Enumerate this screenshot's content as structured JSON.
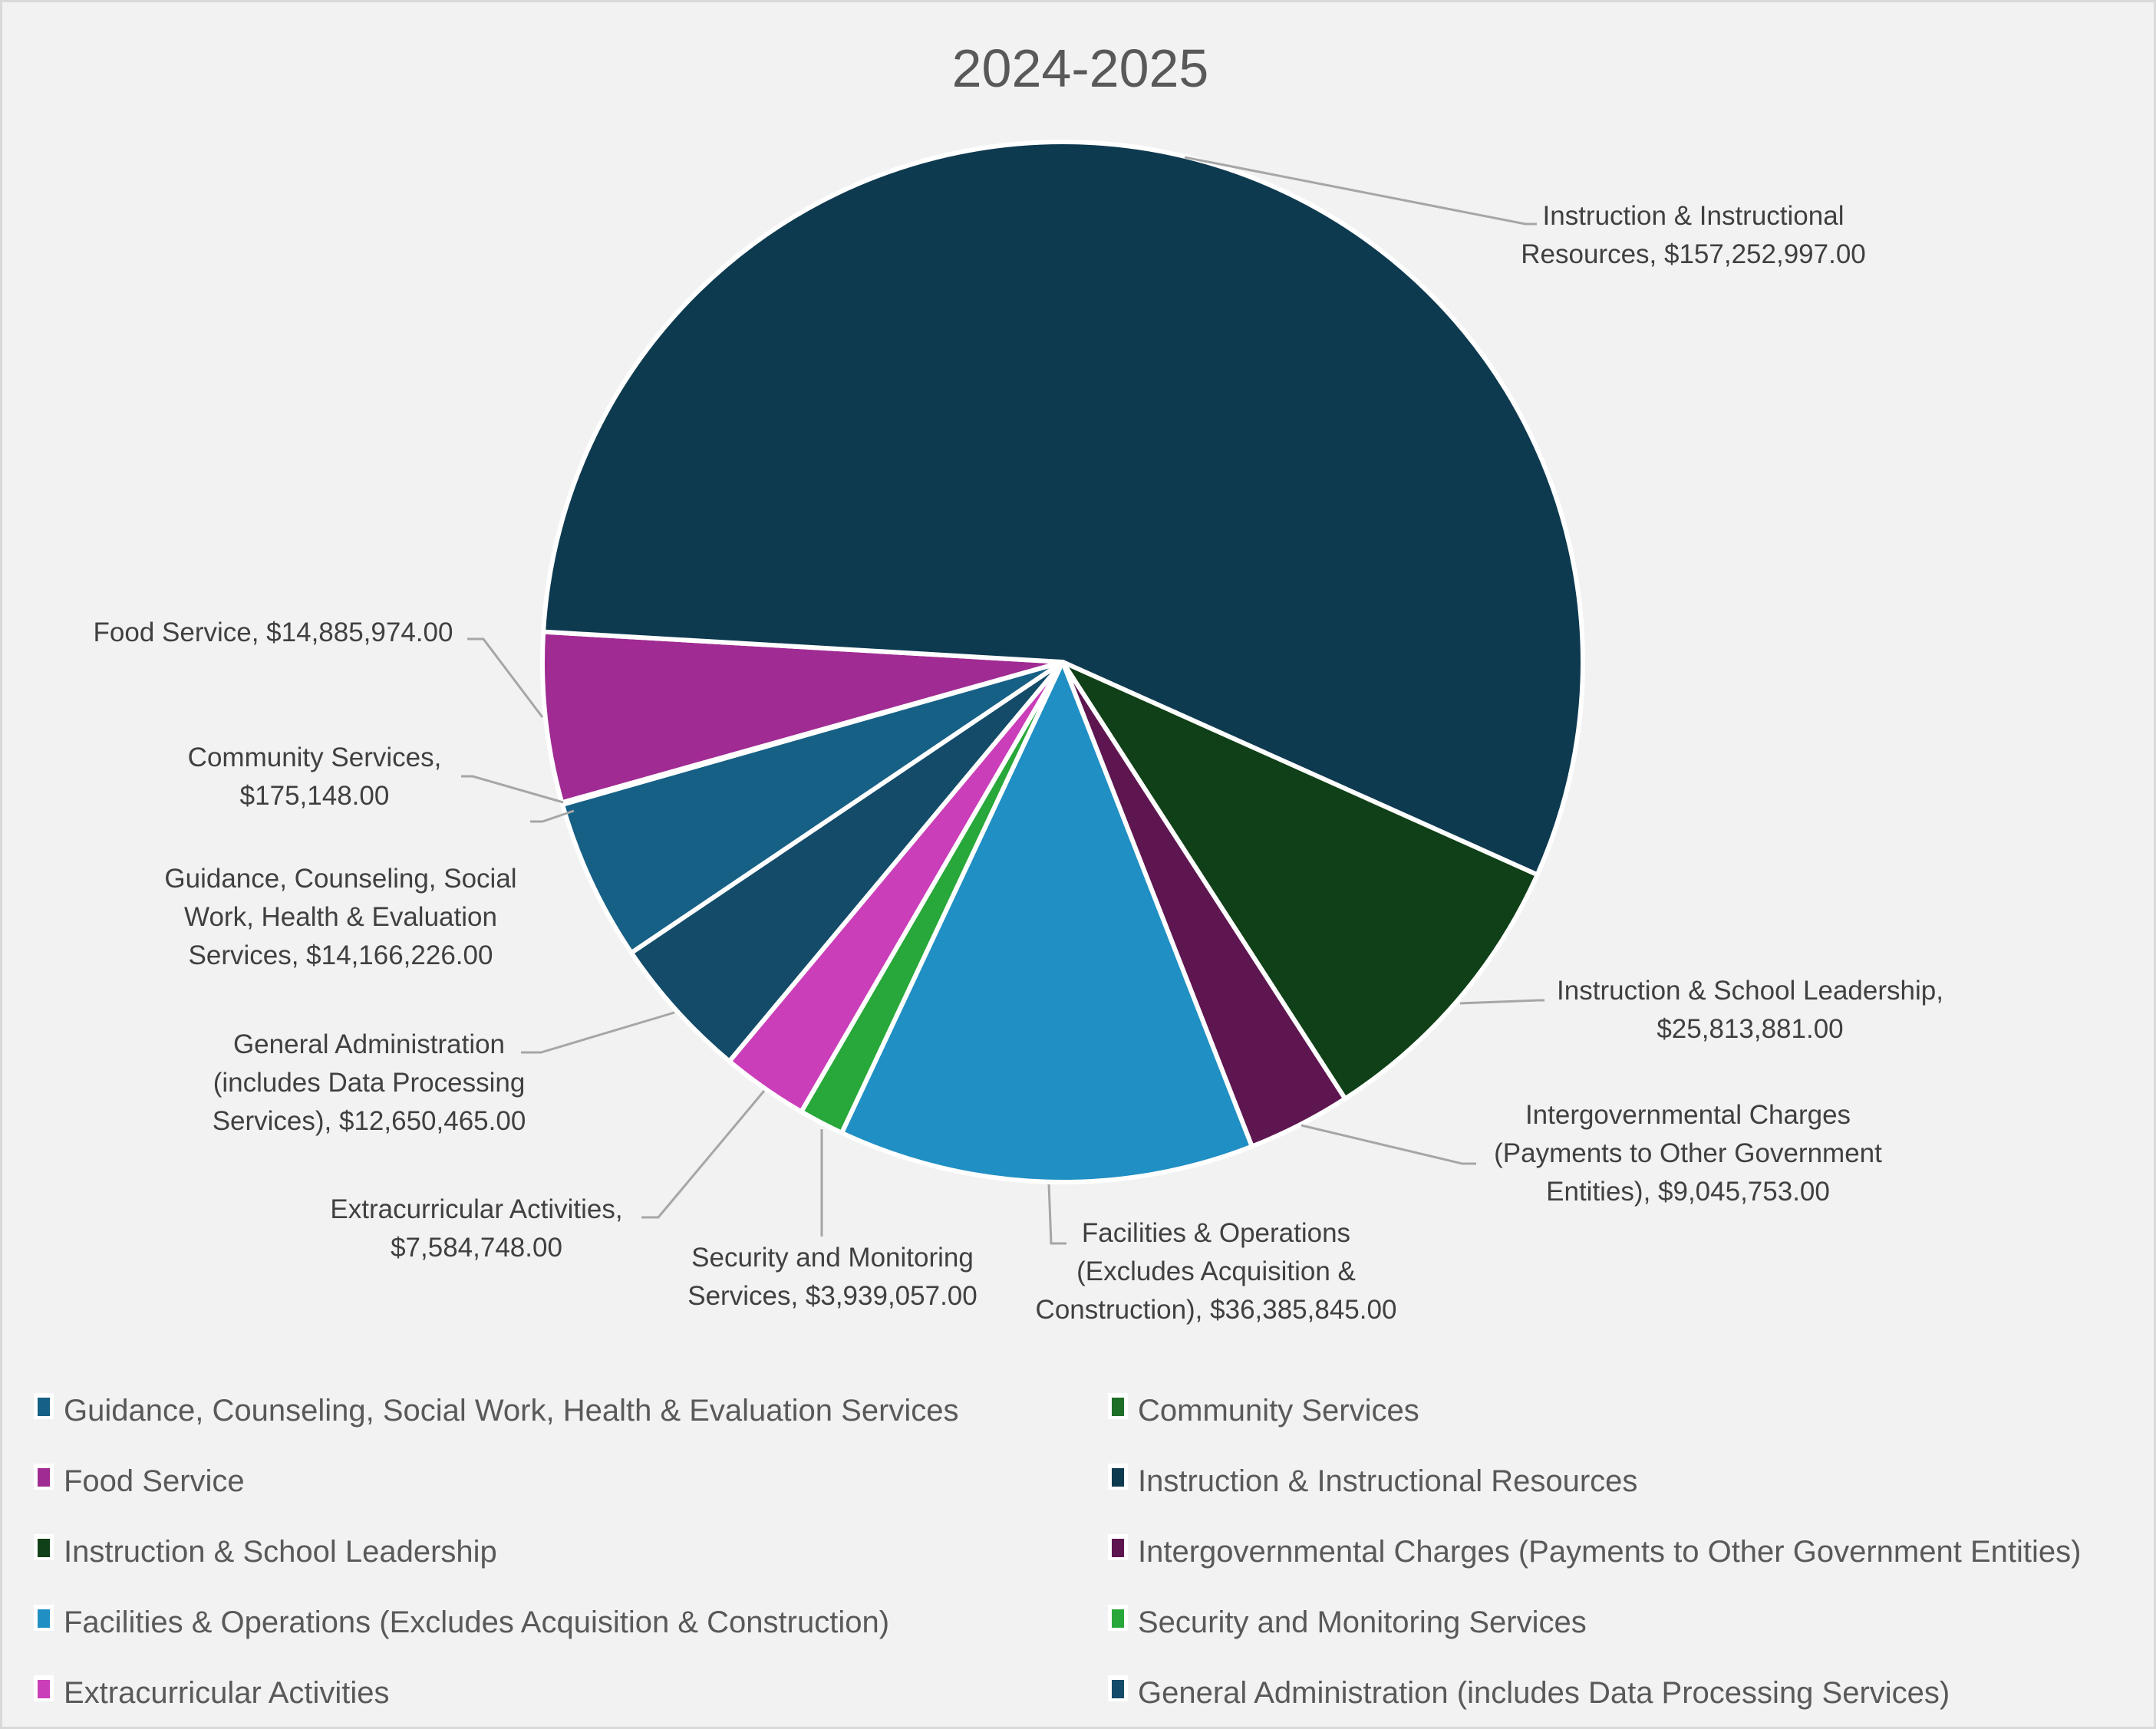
{
  "chart_data": {
    "type": "pie",
    "title": "2024-2025",
    "legend_position": "bottom",
    "slices": [
      {
        "name": "Guidance, Counseling, Social Work,  Health & Evaluation Services",
        "value": 14166226.0,
        "color": "#176085",
        "label_lines": [
          "Guidance, Counseling, Social",
          "Work,  Health & Evaluation",
          "Services, $14,166,226.00"
        ]
      },
      {
        "name": "Community Services",
        "value": 175148.0,
        "color": "#1E6E27",
        "label_lines": [
          "Community Services,",
          "$175,148.00"
        ]
      },
      {
        "name": "Food Service",
        "value": 14885974.0,
        "color": "#A02B93",
        "label_lines": [
          "Food Service, $14,885,974.00"
        ]
      },
      {
        "name": "Instruction & Instructional Resources",
        "value": 157252997.0,
        "color": "#0E3A50",
        "label_lines": [
          "Instruction & Instructional",
          "Resources, $157,252,997.00"
        ]
      },
      {
        "name": "Instruction & School Leadership",
        "value": 25813881.0,
        "color": "#104017",
        "label_lines": [
          "Instruction & School Leadership,",
          "$25,813,881.00"
        ]
      },
      {
        "name": "Intergovernmental Charges (Payments to Other Government Entities)",
        "value": 9045753.0,
        "color": "#5E1650",
        "label_lines": [
          "Intergovernmental Charges",
          "(Payments to Other Government",
          "Entities), $9,045,753.00"
        ]
      },
      {
        "name": "Facilities & Operations (Excludes Acquisition & Construction)",
        "value": 36385845.0,
        "color": "#208FC3",
        "label_lines": [
          "Facilities & Operations",
          "(Excludes Acquisition &",
          "Construction), $36,385,845.00"
        ]
      },
      {
        "name": "Security and Monitoring Services",
        "value": 3939057.0,
        "color": "#28A73A",
        "label_lines": [
          "Security and Monitoring",
          "Services, $3,939,057.00"
        ]
      },
      {
        "name": "Extracurricular Activities",
        "value": 7584748.0,
        "color": "#CA3EB9",
        "label_lines": [
          "Extracurricular Activities,",
          "$7,584,748.00"
        ]
      },
      {
        "name": "General Administration (includes Data Processing Services)",
        "value": 12650465.0,
        "color": "#134B69",
        "label_lines": [
          "General Administration",
          "(includes Data Processing",
          "Services), $12,650,465.00"
        ]
      }
    ]
  }
}
